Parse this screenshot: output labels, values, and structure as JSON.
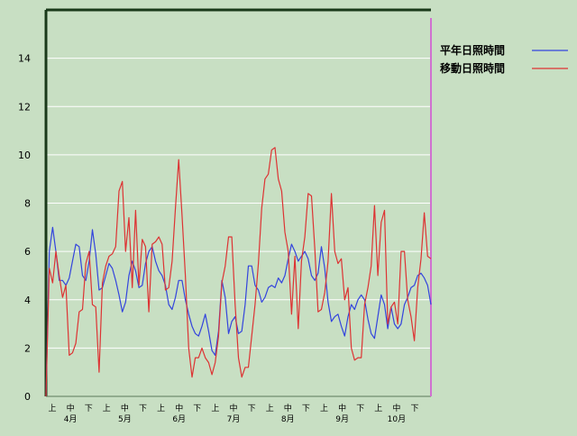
{
  "chart_data": {
    "type": "line",
    "title": "",
    "xlabel": "",
    "ylabel": "",
    "ylim": [
      0,
      16
    ],
    "yticks": [
      0,
      2,
      4,
      6,
      8,
      10,
      12,
      14
    ],
    "grid": "horizontal",
    "legend_position": "top-right",
    "colors": {
      "background": "#c8dfc3",
      "grid": "#ffffff",
      "axis": "#1a3a1a",
      "end_marker": "#d070d0"
    },
    "x_tick_labels": [
      "上",
      "中",
      "下",
      "上",
      "中",
      "下",
      "上",
      "中",
      "下",
      "上",
      "中",
      "下",
      "上",
      "中",
      "下",
      "上",
      "中",
      "下",
      "上",
      "中",
      "下"
    ],
    "month_labels": [
      "4月",
      "5月",
      "6月",
      "7月",
      "8月",
      "9月",
      "10月"
    ],
    "series": [
      {
        "name": "平年日照時間",
        "color": "#3344dd",
        "values": [
          0,
          6.0,
          7.0,
          6.0,
          4.8,
          4.8,
          4.6,
          4.9,
          5.6,
          6.3,
          6.2,
          5.0,
          4.8,
          5.6,
          6.9,
          5.9,
          4.4,
          4.5,
          5.0,
          5.5,
          5.3,
          4.8,
          4.2,
          3.5,
          3.9,
          5.0,
          5.6,
          5.2,
          4.5,
          4.6,
          5.5,
          6.0,
          6.2,
          5.6,
          5.2,
          5.0,
          4.6,
          3.8,
          3.6,
          4.1,
          4.8,
          4.8,
          4.0,
          3.4,
          2.9,
          2.6,
          2.5,
          2.9,
          3.4,
          2.7,
          1.9,
          1.7,
          2.7,
          4.8,
          4.1,
          2.6,
          3.1,
          3.3,
          2.6,
          2.7,
          3.8,
          5.4,
          5.4,
          4.6,
          4.4,
          3.9,
          4.1,
          4.5,
          4.6,
          4.5,
          4.9,
          4.7,
          5.0,
          5.7,
          6.3,
          6.0,
          5.6,
          5.8,
          6.0,
          5.7,
          5.0,
          4.8,
          5.1,
          6.2,
          5.3,
          3.9,
          3.1,
          3.3,
          3.4,
          2.9,
          2.5,
          3.3,
          3.8,
          3.6,
          4.0,
          4.2,
          4.0,
          3.2,
          2.6,
          2.4,
          3.3,
          4.2,
          3.8,
          2.8,
          3.7,
          3.0,
          2.8,
          3.0,
          3.8,
          4.1,
          4.5,
          4.6,
          5.0,
          5.1,
          4.9,
          4.6,
          3.8
        ]
      },
      {
        "name": "移動日照時間",
        "color": "#dd3333",
        "values": [
          0,
          5.3,
          4.7,
          6.0,
          5.0,
          4.1,
          4.6,
          1.7,
          1.8,
          2.2,
          3.5,
          3.6,
          5.5,
          6.0,
          3.8,
          3.7,
          1.0,
          4.7,
          5.4,
          5.8,
          5.9,
          6.2,
          8.5,
          8.9,
          6.0,
          7.4,
          4.5,
          7.7,
          4.6,
          6.5,
          6.2,
          3.5,
          6.3,
          6.4,
          6.6,
          6.3,
          4.4,
          4.5,
          5.6,
          7.8,
          9.8,
          7.5,
          5.0,
          2.0,
          0.8,
          1.6,
          1.6,
          2.0,
          1.6,
          1.4,
          0.9,
          1.4,
          2.5,
          4.7,
          5.4,
          6.6,
          6.6,
          3.8,
          1.6,
          0.8,
          1.2,
          1.2,
          2.5,
          3.8,
          5.5,
          7.8,
          9.0,
          9.2,
          10.2,
          10.3,
          9.0,
          8.5,
          6.8,
          6.0,
          3.4,
          5.8,
          2.8,
          5.6,
          6.6,
          8.4,
          8.3,
          6.1,
          3.5,
          3.6,
          4.3,
          5.6,
          8.4,
          6.0,
          5.5,
          5.7,
          4.0,
          4.5,
          2.0,
          1.5,
          1.6,
          1.6,
          3.8,
          4.5,
          5.4,
          7.9,
          5.0,
          7.2,
          7.7,
          3.0,
          3.7,
          3.9,
          3.0,
          6.0,
          6.0,
          4.0,
          3.3,
          2.3,
          4.5,
          5.7,
          7.6,
          5.8,
          5.7
        ]
      }
    ]
  }
}
